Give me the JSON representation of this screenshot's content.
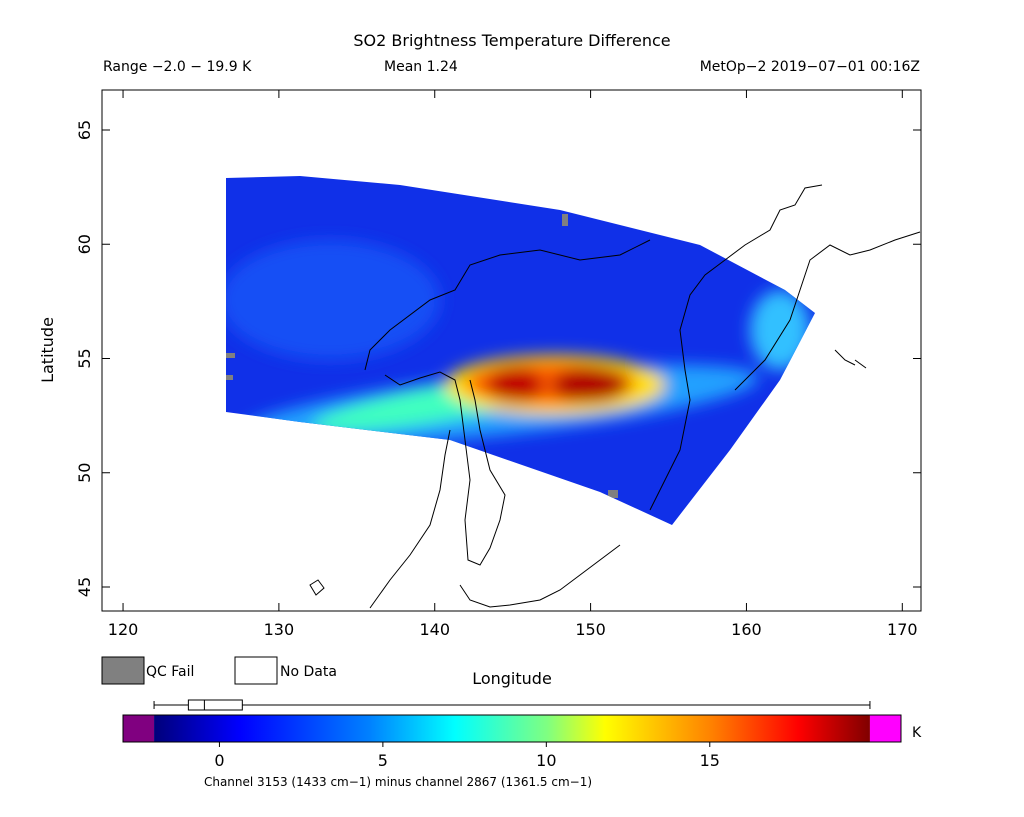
{
  "title": "SO2 Brightness Temperature Difference",
  "range_label": "Range −2.0 − 19.9 K",
  "mean_label": "Mean 1.24",
  "source_label": "MetOp−2 2019−07−01 00:16Z",
  "map": {
    "xlabel": "Longitude",
    "ylabel": "Latitude",
    "xlim": [
      118.65,
      171.2
    ],
    "ylim": [
      43.95,
      66.75
    ],
    "xticks": [
      120,
      130,
      140,
      150,
      160,
      170
    ],
    "yticks": [
      45,
      50,
      55,
      60,
      65
    ]
  },
  "legend": {
    "qc_fail": "QC Fail",
    "no_data": "No Data"
  },
  "colorbar": {
    "unit": "K",
    "lim": [
      -2.95,
      20.85
    ],
    "range": [
      -2.0,
      19.9
    ],
    "ticks": [
      0,
      5,
      10,
      15
    ],
    "box": {
      "whisker": [
        -2.0,
        19.9
      ],
      "quartiles": [
        -0.95,
        0.7
      ],
      "median": -0.46
    }
  },
  "caption": "Channel 3153 (1433 cm−1) minus channel 2867 (1361.5 cm−1)"
}
